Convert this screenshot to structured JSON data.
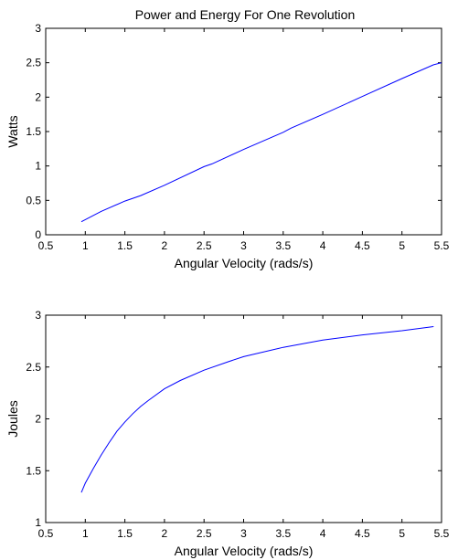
{
  "figure_title": "Power and Energy For One Revolution",
  "line_color": "#0000ff",
  "chart_data": [
    {
      "type": "line",
      "title": "Power and Energy For One Revolution",
      "xlabel": "Angular Velocity (rads/s)",
      "ylabel": "Watts",
      "xlim": [
        0.5,
        5.5
      ],
      "ylim": [
        0,
        3
      ],
      "xticks": [
        "0.5",
        "1",
        "1.5",
        "2",
        "2.5",
        "3",
        "3.5",
        "4",
        "4.5",
        "5",
        "5.5"
      ],
      "yticks": [
        "0",
        "0.5",
        "1",
        "1.5",
        "2",
        "2.5",
        "3"
      ],
      "grid": false,
      "series": [
        {
          "x": [
            0.95,
            1.2,
            1.5,
            1.7,
            2.0,
            2.5,
            2.6,
            3.0,
            3.5,
            3.6,
            4.0,
            4.5,
            5.0,
            5.4,
            5.5
          ],
          "y": [
            0.19,
            0.34,
            0.49,
            0.57,
            0.72,
            0.99,
            1.03,
            1.24,
            1.49,
            1.55,
            1.75,
            2.01,
            2.27,
            2.47,
            2.5
          ]
        }
      ]
    },
    {
      "type": "line",
      "title": "",
      "xlabel": "Angular Velocity (rads/s)",
      "ylabel": "Joules",
      "xlim": [
        0.5,
        5.5
      ],
      "ylim": [
        1,
        3
      ],
      "xticks": [
        "0.5",
        "1",
        "1.5",
        "2",
        "2.5",
        "3",
        "3.5",
        "4",
        "4.5",
        "5",
        "5.5"
      ],
      "yticks": [
        "1",
        "1.5",
        "2",
        "2.5",
        "3"
      ],
      "grid": false,
      "series": [
        {
          "x": [
            0.95,
            1.0,
            1.1,
            1.2,
            1.3,
            1.4,
            1.5,
            1.6,
            1.7,
            1.8,
            2.0,
            2.2,
            2.5,
            2.8,
            3.0,
            3.5,
            4.0,
            4.5,
            5.0,
            5.4
          ],
          "y": [
            1.29,
            1.38,
            1.52,
            1.65,
            1.77,
            1.88,
            1.97,
            2.05,
            2.12,
            2.18,
            2.29,
            2.37,
            2.47,
            2.55,
            2.6,
            2.69,
            2.76,
            2.81,
            2.85,
            2.89
          ]
        }
      ]
    }
  ]
}
